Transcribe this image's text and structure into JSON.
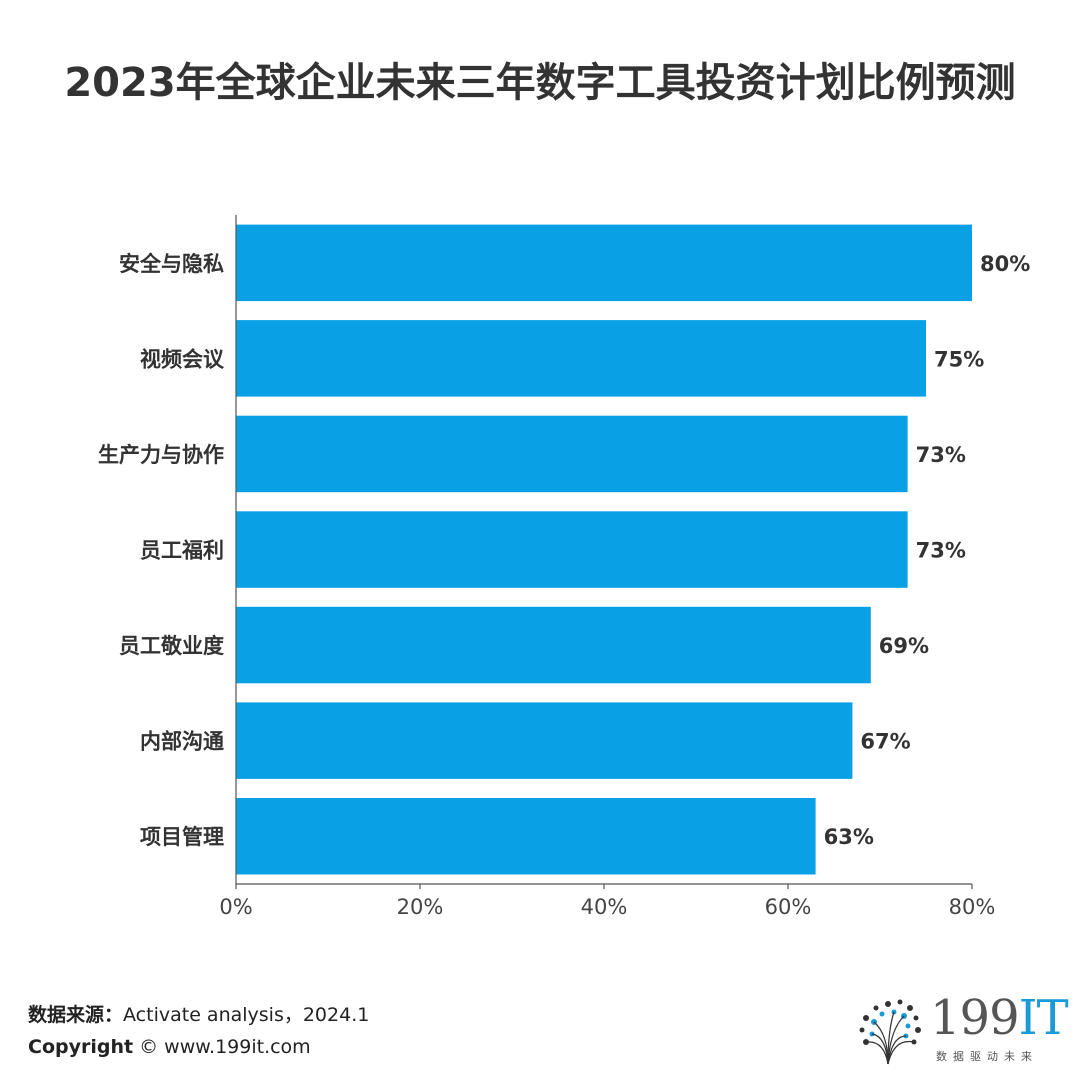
{
  "title": "2023年全球企业未来三年数字工具投资计划比例预测",
  "chart_data": {
    "type": "bar",
    "orientation": "horizontal",
    "categories": [
      "安全与隐私",
      "视频会议",
      "生产力与协作",
      "员工福利",
      "员工敬业度",
      "内部沟通",
      "项目管理"
    ],
    "values": [
      80,
      75,
      73,
      73,
      69,
      67,
      63
    ],
    "value_labels": [
      "80%",
      "75%",
      "73%",
      "73%",
      "69%",
      "67%",
      "63%"
    ],
    "x_ticks": [
      "0%",
      "20%",
      "40%",
      "60%",
      "80%"
    ],
    "xlim": [
      0,
      80
    ],
    "bar_color": "#0aa0e6",
    "grid": false,
    "legend": "none"
  },
  "footer": {
    "source_label": "数据来源：",
    "source_text": "Activate analysis，2024.1",
    "copyright_label": "Copyright",
    "copyright_text": "© www.199it.com"
  },
  "logo": {
    "text_main": "199",
    "text_accent": "IT",
    "subtitle": "数据驱动未来",
    "accent_color": "#1a9ad6"
  }
}
